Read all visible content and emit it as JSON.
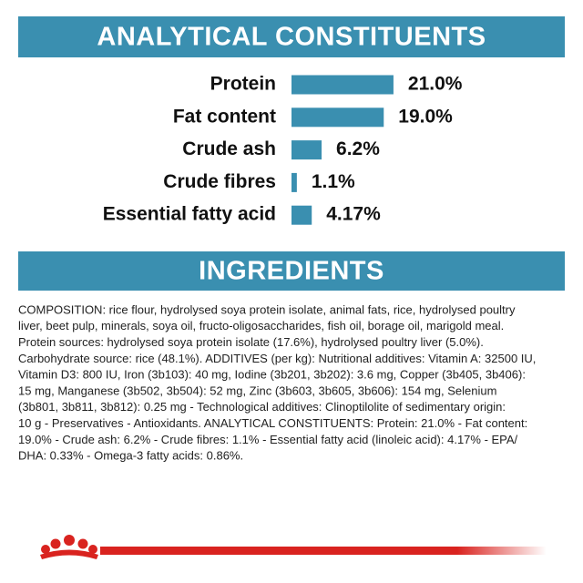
{
  "chart_data": {
    "type": "hbar",
    "title": "ANALYTICAL CONSTITUENTS",
    "categories": [
      "Protein",
      "Fat content",
      "Crude ash",
      "Crude fibres",
      "Essential fatty acid"
    ],
    "values": [
      21.0,
      19.0,
      6.2,
      1.1,
      4.17
    ],
    "value_labels": [
      "21.0%",
      "19.0%",
      "6.2%",
      "1.1%",
      "4.17%"
    ],
    "color": "#3a8fb0"
  },
  "ingredients": {
    "title": "INGREDIENTS",
    "lines": [
      "COMPOSITION: rice flour, hydrolysed soya protein isolate, animal fats, rice, hydrolysed poultry",
      "liver, beet pulp, minerals, soya oil, fructo-oligosaccharides, fish oil, borage oil, marigold meal.",
      "Protein sources: hydrolysed soya protein isolate (17.6%), hydrolysed poultry liver (5.0%).",
      "Carbohydrate source: rice (48.1%). ADDITIVES (per kg): Nutritional additives: Vitamin A: 32500 IU,",
      "Vitamin D3: 800 IU, Iron (3b103): 40 mg, Iodine (3b201, 3b202): 3.6 mg, Copper (3b405, 3b406):",
      "15 mg, Manganese (3b502, 3b504): 52 mg, Zinc (3b603, 3b605, 3b606): 154 mg, Selenium",
      "(3b801, 3b811, 3b812): 0.25 mg - Technological additives: Clinoptilolite of sedimentary origin:",
      "10 g - Preservatives - Antioxidants. ANALYTICAL CONSTITUENTS: Protein: 21.0% - Fat content:",
      "19.0% - Crude ash: 6.2% - Crude fibres: 1.1% - Essential fatty acid (linoleic acid): 4.17% - EPA/",
      "DHA: 0.33% - Omega-3 fatty acids: 0.86%."
    ]
  }
}
